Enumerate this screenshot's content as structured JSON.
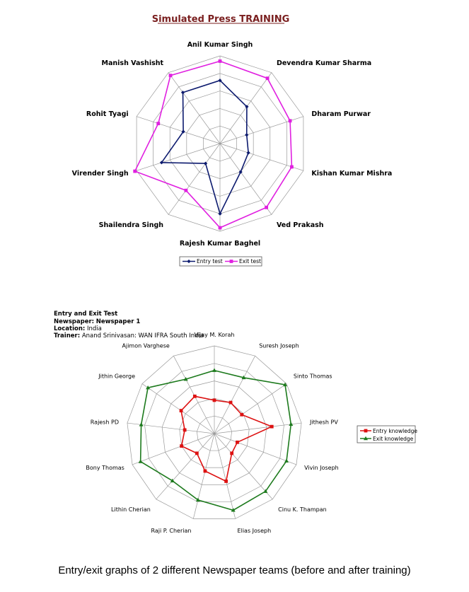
{
  "charts": [
    {
      "title": "Simulated Press TRAINING",
      "type": "radar",
      "chart_data": {
        "type": "radar",
        "categories": [
          "Anil Kumar Singh",
          "Devendra Kumar Sharma",
          "Dharam Purwar",
          "Kishan Kumar Mishra",
          "Ved Prakash",
          "Rajesh Kumar Baghel",
          "Shailendra Singh",
          "Virender Singh",
          "Rohit Tyagi",
          "Manish Vashisht"
        ],
        "rmax": 5,
        "rings": 5,
        "series": [
          {
            "name": "Entry test",
            "color": "#0c1a6e",
            "marker": "diamond",
            "values": [
              3.6,
              2.6,
              1.6,
              1.7,
              2.0,
              4.0,
              1.4,
              3.5,
              2.2,
              3.6
            ]
          },
          {
            "name": "Exit test",
            "color": "#e020e0",
            "marker": "square",
            "values": [
              4.7,
              4.6,
              4.2,
              4.3,
              4.5,
              4.8,
              3.3,
              5.1,
              3.7,
              4.8
            ]
          }
        ],
        "legend": "bottom"
      }
    },
    {
      "title": "Entry and Exit Test",
      "info": [
        {
          "label": "Newspaper:",
          "value": "Newspaper 1"
        },
        {
          "label": "Location:",
          "value": "India"
        },
        {
          "label": "Trainer:",
          "value": "Anand Srinivasan: WAN IFRA South India"
        }
      ],
      "chart_data": {
        "type": "radar",
        "categories": [
          "Vijay M. Korah",
          "Suresh Joseph",
          "Sinto Thomas",
          "Jithesh PV",
          "Vivin Joseph",
          "Cinu K. Thampan",
          "Elias Joseph",
          "Raji P. Cherian",
          "Lithin Cherian",
          "Bony Thomas",
          "Rajesh PD",
          "Jithin George",
          "Ajimon Varghese"
        ],
        "rmax": 5,
        "rings": 5,
        "series": [
          {
            "name": "Entry knowledge",
            "color": "#dd1111",
            "marker": "square",
            "values": [
              1.9,
              2.0,
              1.9,
              3.3,
              1.4,
              1.5,
              2.8,
              2.2,
              1.5,
              2.0,
              1.7,
              2.3,
              2.4
            ]
          },
          {
            "name": "Exit knowledge",
            "color": "#1d7a1d",
            "marker": "triangle",
            "values": [
              3.6,
              3.6,
              4.9,
              4.4,
              4.4,
              4.4,
              4.5,
              3.9,
              3.6,
              4.5,
              4.2,
              4.6,
              3.5
            ]
          }
        ],
        "legend": "right"
      }
    }
  ],
  "caption": "Entry/exit graphs of 2 different Newspaper teams (before and after training)"
}
